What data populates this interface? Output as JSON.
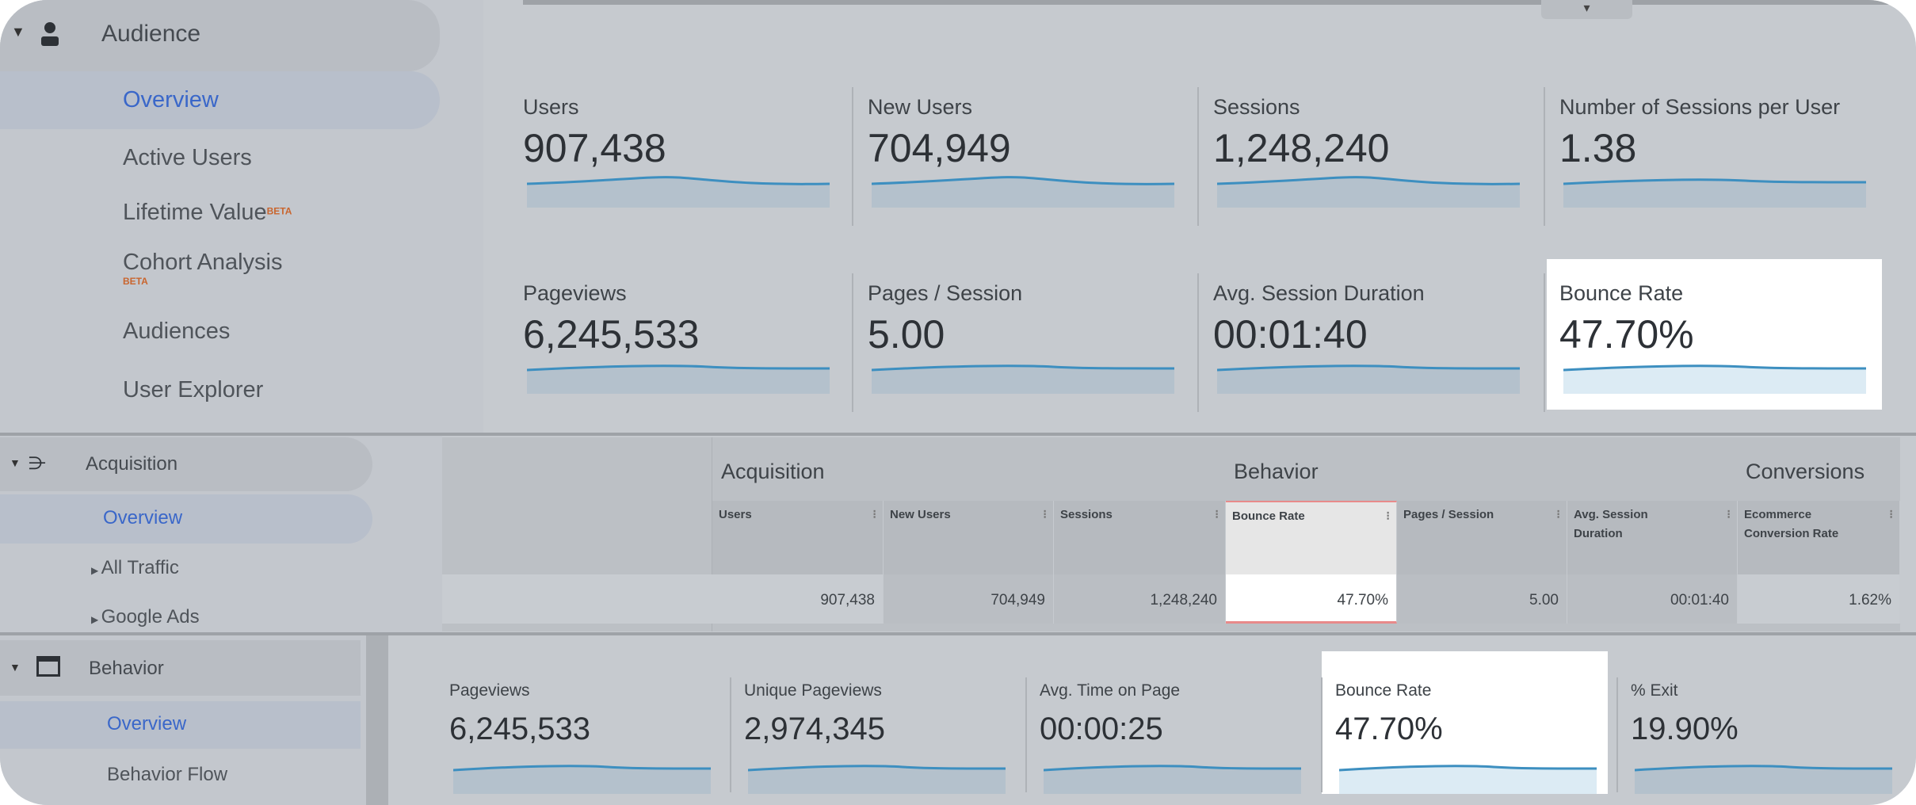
{
  "audience": {
    "header": "Audience",
    "items": [
      {
        "label": "Overview",
        "active": true
      },
      {
        "label": "Active Users"
      },
      {
        "label": "Lifetime Value",
        "badge": "BETA"
      },
      {
        "label": "Cohort Analysis",
        "badge": "BETA"
      },
      {
        "label": "Audiences"
      },
      {
        "label": "User Explorer"
      }
    ],
    "metrics": [
      {
        "label": "Users",
        "value": "907,438"
      },
      {
        "label": "New Users",
        "value": "704,949"
      },
      {
        "label": "Sessions",
        "value": "1,248,240"
      },
      {
        "label": "Number of Sessions per User",
        "value": "1.38"
      },
      {
        "label": "Pageviews",
        "value": "6,245,533"
      },
      {
        "label": "Pages / Session",
        "value": "5.00"
      },
      {
        "label": "Avg. Session Duration",
        "value": "00:01:40"
      },
      {
        "label": "Bounce Rate",
        "value": "47.70%",
        "highlighted": true
      }
    ]
  },
  "acquisition": {
    "header": "Acquisition",
    "items": [
      {
        "label": "Overview",
        "active": true
      },
      {
        "label": "All Traffic"
      },
      {
        "label": "Google Ads"
      }
    ],
    "table": {
      "groups": [
        "Acquisition",
        "Behavior",
        "Conversions"
      ],
      "columns": [
        "Users",
        "New Users",
        "Sessions",
        "Bounce Rate",
        "Pages / Session",
        "Avg. Session Duration",
        "Ecommerce Conversion Rate"
      ],
      "row": [
        "907,438",
        "704,949",
        "1,248,240",
        "47.70%",
        "5.00",
        "00:01:40",
        "1.62%"
      ],
      "highlighted_column": "Bounce Rate"
    }
  },
  "behavior": {
    "header": "Behavior",
    "items": [
      {
        "label": "Overview",
        "active": true
      },
      {
        "label": "Behavior Flow"
      }
    ],
    "metrics": [
      {
        "label": "Pageviews",
        "value": "6,245,533"
      },
      {
        "label": "Unique Pageviews",
        "value": "2,974,345"
      },
      {
        "label": "Avg. Time on Page",
        "value": "00:00:25"
      },
      {
        "label": "Bounce Rate",
        "value": "47.70%",
        "highlighted": true
      },
      {
        "label": "% Exit",
        "value": "19.90%"
      }
    ]
  },
  "colors": {
    "accent": "#3a67c9",
    "sparkline": "#3d8fc0",
    "highlight_border": "#e88a8a",
    "beta": "#c9652e"
  }
}
